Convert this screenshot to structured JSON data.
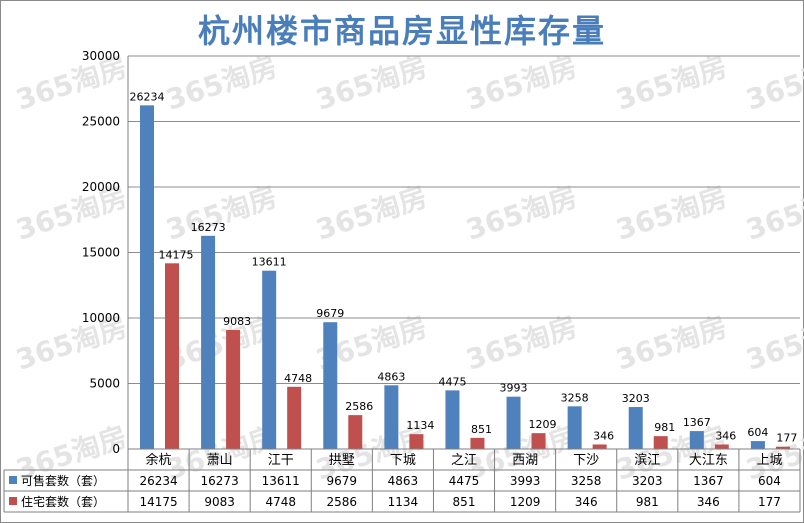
{
  "chart_data": {
    "type": "bar",
    "title": "杭州楼市商品房显性库存量",
    "watermark": "365淘房",
    "categories": [
      "余杭",
      "萧山",
      "江干",
      "拱墅",
      "下城",
      "之江",
      "西湖",
      "下沙",
      "滨江",
      "大江东",
      "上城"
    ],
    "series": [
      {
        "name": "可售套数（套）",
        "color": "#4f81bd",
        "values": [
          26234,
          16273,
          13611,
          9679,
          4863,
          4475,
          3993,
          3258,
          3203,
          1367,
          604
        ]
      },
      {
        "name": "住宅套数（套）",
        "color": "#c0504d",
        "values": [
          14175,
          9083,
          4748,
          2586,
          1134,
          851,
          1209,
          346,
          981,
          346,
          177
        ]
      }
    ],
    "ylim": [
      0,
      30000
    ],
    "yticks": [
      "0",
      "5000",
      "10000",
      "15000",
      "20000",
      "25000",
      "30000"
    ],
    "grid": true,
    "legend": "data-table",
    "table_rows": [
      {
        "label": "可售套数（套）",
        "cells": [
          "26234",
          "16273",
          "13611",
          "9679",
          "4863",
          "4475",
          "3993",
          "3258",
          "3203",
          "1367",
          "604"
        ]
      },
      {
        "label": "住宅套数（套）",
        "cells": [
          "14175",
          "9083",
          "4748",
          "2586",
          "1134",
          "851",
          "1209",
          "346",
          "981",
          "346",
          "177"
        ]
      }
    ]
  }
}
